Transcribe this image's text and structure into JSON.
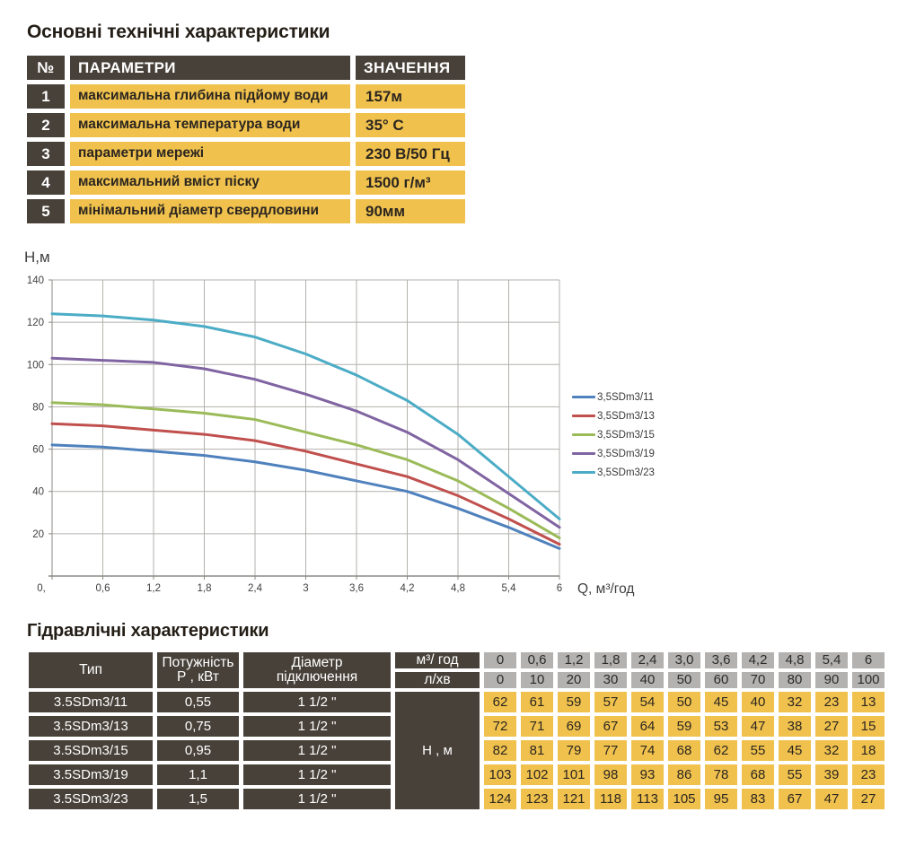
{
  "colors": {
    "dark_cell": "#48413a",
    "yellow_cell": "#f0c24d",
    "gray_cell": "#b3b2b0",
    "grid_line": "#b3b1ad",
    "axis_line": "#8c8a86",
    "chart_text": "#3f3f3f"
  },
  "section1": {
    "title": "Основні технічні характеристики",
    "table": {
      "headers": {
        "num": "№",
        "param": "ПАРАМЕТРИ",
        "value": "ЗНАЧЕННЯ"
      },
      "rows": [
        {
          "num": "1",
          "param": "максимальна глибина підйому води",
          "value": "157м"
        },
        {
          "num": "2",
          "param": "максимальна температура води",
          "value": "35° С"
        },
        {
          "num": "3",
          "param": "параметри мережі",
          "value": "230 В/50 Гц"
        },
        {
          "num": "4",
          "param": "максимальний вміст піску",
          "value": "1500 г/м³"
        },
        {
          "num": "5",
          "param": "мінімальний діаметр свердловини",
          "value": "90мм"
        }
      ]
    }
  },
  "chart_data": {
    "type": "line",
    "ylabel": "Н,м",
    "xlabel": "Q,  м³/год",
    "x": [
      0,
      0.6,
      1.2,
      1.8,
      2.4,
      3,
      3.6,
      4.2,
      4.8,
      5.4,
      6
    ],
    "x_tick_labels": [
      "0,",
      "0,6",
      "1,2",
      "1,8",
      "2,4",
      "3",
      "3,6",
      "4,2",
      "4,8",
      "5,4",
      "6"
    ],
    "xlim": [
      0,
      6
    ],
    "ylim": [
      0,
      140
    ],
    "y_ticks": [
      20,
      40,
      60,
      80,
      100,
      120,
      140
    ],
    "grid": true,
    "legend_position": "right",
    "series": [
      {
        "name": "3,5SDm3/11",
        "color": "#4F81BD",
        "values": [
          62,
          61,
          59,
          57,
          54,
          50,
          45,
          40,
          32,
          23,
          13
        ]
      },
      {
        "name": "3,5SDm3/13",
        "color": "#C0504D",
        "values": [
          72,
          71,
          69,
          67,
          64,
          59,
          53,
          47,
          38,
          27,
          15
        ]
      },
      {
        "name": "3,5SDm3/15",
        "color": "#9BBB59",
        "values": [
          82,
          81,
          79,
          77,
          74,
          68,
          62,
          55,
          45,
          32,
          18
        ]
      },
      {
        "name": "3,5SDm3/19",
        "color": "#8064A2",
        "values": [
          103,
          102,
          101,
          98,
          93,
          86,
          78,
          68,
          55,
          39,
          23
        ]
      },
      {
        "name": "3,5SDm3/23",
        "color": "#4BACC6",
        "values": [
          124,
          123,
          121,
          118,
          113,
          105,
          95,
          83,
          67,
          47,
          27
        ]
      }
    ]
  },
  "section2": {
    "title": "Гідравлічні характеристики",
    "table": {
      "col_headers": {
        "type": "Тип",
        "power1": "Потужність",
        "power2": "Р , кВт",
        "diam1": "Діаметр",
        "diam2": "підключення",
        "flow_m3": "м³/ год",
        "flow_l": "л/хв",
        "head": "Н , м"
      },
      "flow_m3_values": [
        "0",
        "0,6",
        "1,2",
        "1,8",
        "2,4",
        "3,0",
        "3,6",
        "4,2",
        "4,8",
        "5,4",
        "6"
      ],
      "flow_l_values": [
        "0",
        "10",
        "20",
        "30",
        "40",
        "50",
        "60",
        "70",
        "80",
        "90",
        "100"
      ],
      "rows": [
        {
          "type": "3.5SDm3/11",
          "power": "0,55",
          "diameter": "1 1/2 \"",
          "heads": [
            "62",
            "61",
            "59",
            "57",
            "54",
            "50",
            "45",
            "40",
            "32",
            "23",
            "13"
          ]
        },
        {
          "type": "3.5SDm3/13",
          "power": "0,75",
          "diameter": "1 1/2 \"",
          "heads": [
            "72",
            "71",
            "69",
            "67",
            "64",
            "59",
            "53",
            "47",
            "38",
            "27",
            "15"
          ]
        },
        {
          "type": "3.5SDm3/15",
          "power": "0,95",
          "diameter": "1 1/2 \"",
          "heads": [
            "82",
            "81",
            "79",
            "77",
            "74",
            "68",
            "62",
            "55",
            "45",
            "32",
            "18"
          ]
        },
        {
          "type": "3.5SDm3/19",
          "power": "1,1",
          "diameter": "1 1/2 \"",
          "heads": [
            "103",
            "102",
            "101",
            "98",
            "93",
            "86",
            "78",
            "68",
            "55",
            "39",
            "23"
          ]
        },
        {
          "type": "3.5SDm3/23",
          "power": "1,5",
          "diameter": "1 1/2 \"",
          "heads": [
            "124",
            "123",
            "121",
            "118",
            "113",
            "105",
            "95",
            "83",
            "67",
            "47",
            "27"
          ]
        }
      ]
    }
  }
}
